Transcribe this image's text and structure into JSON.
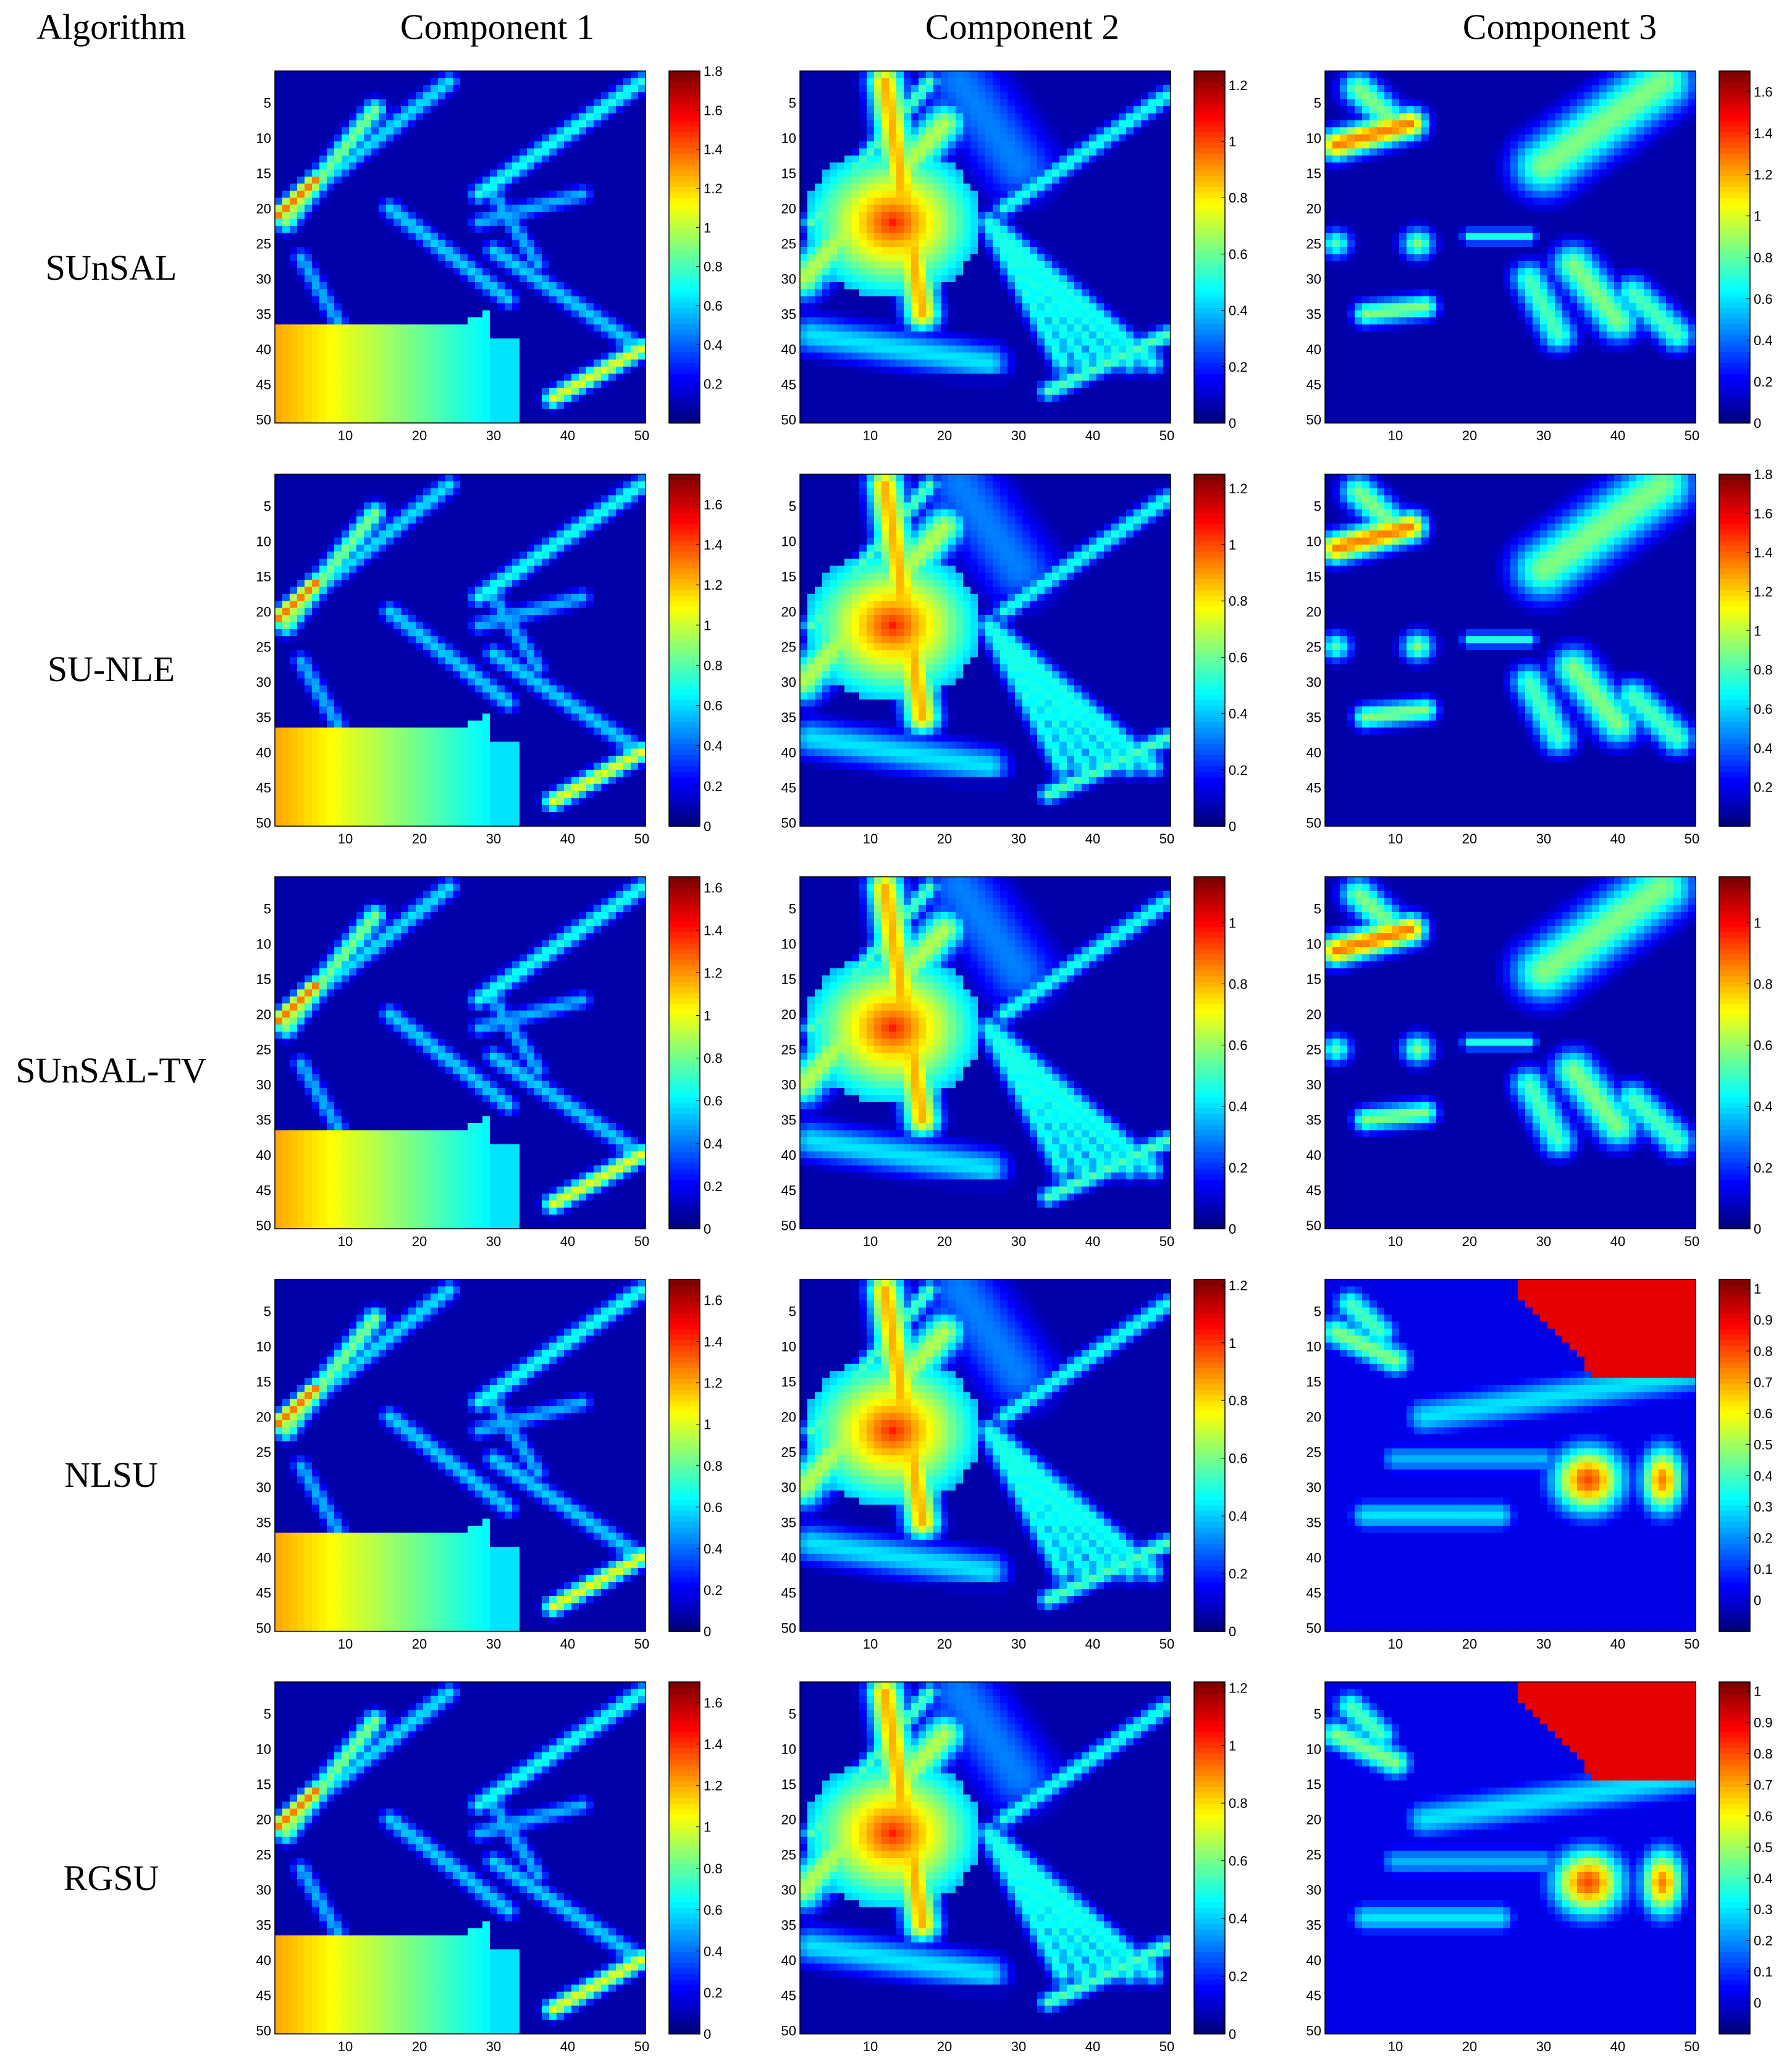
{
  "headers": {
    "algorithm": "Algorithm",
    "components": [
      "Component 1",
      "Component 2",
      "Component 3"
    ]
  },
  "colors": {
    "colormap": [
      "#00007f",
      "#0000ff",
      "#00ffff",
      "#ffff00",
      "#ff0000",
      "#7f0000"
    ],
    "frame": "#000000"
  },
  "chart_data": {
    "type": "heatmap",
    "grid_size": 50,
    "rows": [
      {
        "algorithm": "SUnSAL",
        "panels": [
          {
            "component": "Component 1",
            "colorbar_ticks": [
              "0.2",
              "0.4",
              "0.6",
              "0.8",
              "1",
              "1.2",
              "1.4",
              "1.6",
              "1.8"
            ],
            "vmin": 0,
            "vmax": 1.8
          },
          {
            "component": "Component 2",
            "colorbar_ticks": [
              "0",
              "0.2",
              "0.4",
              "0.6",
              "0.8",
              "1",
              "1.2"
            ],
            "vmin": 0,
            "vmax": 1.25
          },
          {
            "component": "Component 3",
            "colorbar_ticks": [
              "0",
              "0.2",
              "0.4",
              "0.6",
              "0.8",
              "1",
              "1.2",
              "1.4",
              "1.6"
            ],
            "vmin": 0,
            "vmax": 1.7
          }
        ]
      },
      {
        "algorithm": "SU-NLE",
        "panels": [
          {
            "component": "Component 1",
            "colorbar_ticks": [
              "0",
              "0.2",
              "0.4",
              "0.6",
              "0.8",
              "1",
              "1.2",
              "1.4",
              "1.6"
            ],
            "vmin": 0,
            "vmax": 1.75
          },
          {
            "component": "Component 2",
            "colorbar_ticks": [
              "0",
              "0.2",
              "0.4",
              "0.6",
              "0.8",
              "1",
              "1.2"
            ],
            "vmin": 0,
            "vmax": 1.25
          },
          {
            "component": "Component 3",
            "colorbar_ticks": [
              "0.2",
              "0.4",
              "0.6",
              "0.8",
              "1",
              "1.2",
              "1.4",
              "1.6",
              "1.8"
            ],
            "vmin": 0,
            "vmax": 1.8
          }
        ]
      },
      {
        "algorithm": "SUnSAL-TV",
        "panels": [
          {
            "component": "Component 1",
            "colorbar_ticks": [
              "0",
              "0.2",
              "0.4",
              "0.6",
              "0.8",
              "1",
              "1.2",
              "1.4",
              "1.6"
            ],
            "vmin": 0,
            "vmax": 1.65
          },
          {
            "component": "Component 2",
            "colorbar_ticks": [
              "0",
              "0.2",
              "0.4",
              "0.6",
              "0.8",
              "1"
            ],
            "vmin": 0,
            "vmax": 1.15
          },
          {
            "component": "Component 3",
            "colorbar_ticks": [
              "0",
              "0.2",
              "0.4",
              "0.6",
              "0.8",
              "1"
            ],
            "vmin": 0,
            "vmax": 1.15
          }
        ]
      },
      {
        "algorithm": "NLSU",
        "panels": [
          {
            "component": "Component 1",
            "colorbar_ticks": [
              "0",
              "0.2",
              "0.4",
              "0.6",
              "0.8",
              "1",
              "1.2",
              "1.4",
              "1.6"
            ],
            "vmin": 0,
            "vmax": 1.7
          },
          {
            "component": "Component 2",
            "colorbar_ticks": [
              "0",
              "0.2",
              "0.4",
              "0.6",
              "0.8",
              "1",
              "1.2"
            ],
            "vmin": 0,
            "vmax": 1.22
          },
          {
            "component": "Component 3",
            "colorbar_ticks": [
              "0",
              "0.1",
              "0.2",
              "0.3",
              "0.4",
              "0.5",
              "0.6",
              "0.7",
              "0.8",
              "0.9",
              "1"
            ],
            "vmin": -0.1,
            "vmax": 1.03
          }
        ]
      },
      {
        "algorithm": "RGSU",
        "panels": [
          {
            "component": "Component 1",
            "colorbar_ticks": [
              "0",
              "0.2",
              "0.4",
              "0.6",
              "0.8",
              "1",
              "1.2",
              "1.4",
              "1.6"
            ],
            "vmin": 0,
            "vmax": 1.7
          },
          {
            "component": "Component 2",
            "colorbar_ticks": [
              "0",
              "0.2",
              "0.4",
              "0.6",
              "0.8",
              "1",
              "1.2"
            ],
            "vmin": 0,
            "vmax": 1.22
          },
          {
            "component": "Component 3",
            "colorbar_ticks": [
              "0",
              "0.1",
              "0.2",
              "0.3",
              "0.4",
              "0.5",
              "0.6",
              "0.7",
              "0.8",
              "0.9",
              "1"
            ],
            "vmin": -0.1,
            "vmax": 1.03
          }
        ]
      }
    ],
    "x_ticks": [
      "10",
      "20",
      "30",
      "40",
      "50"
    ],
    "y_ticks": [
      "5",
      "10",
      "15",
      "20",
      "25",
      "30",
      "35",
      "40",
      "45",
      "50"
    ],
    "xlim": [
      1,
      50
    ],
    "ylim": [
      1,
      50
    ]
  }
}
